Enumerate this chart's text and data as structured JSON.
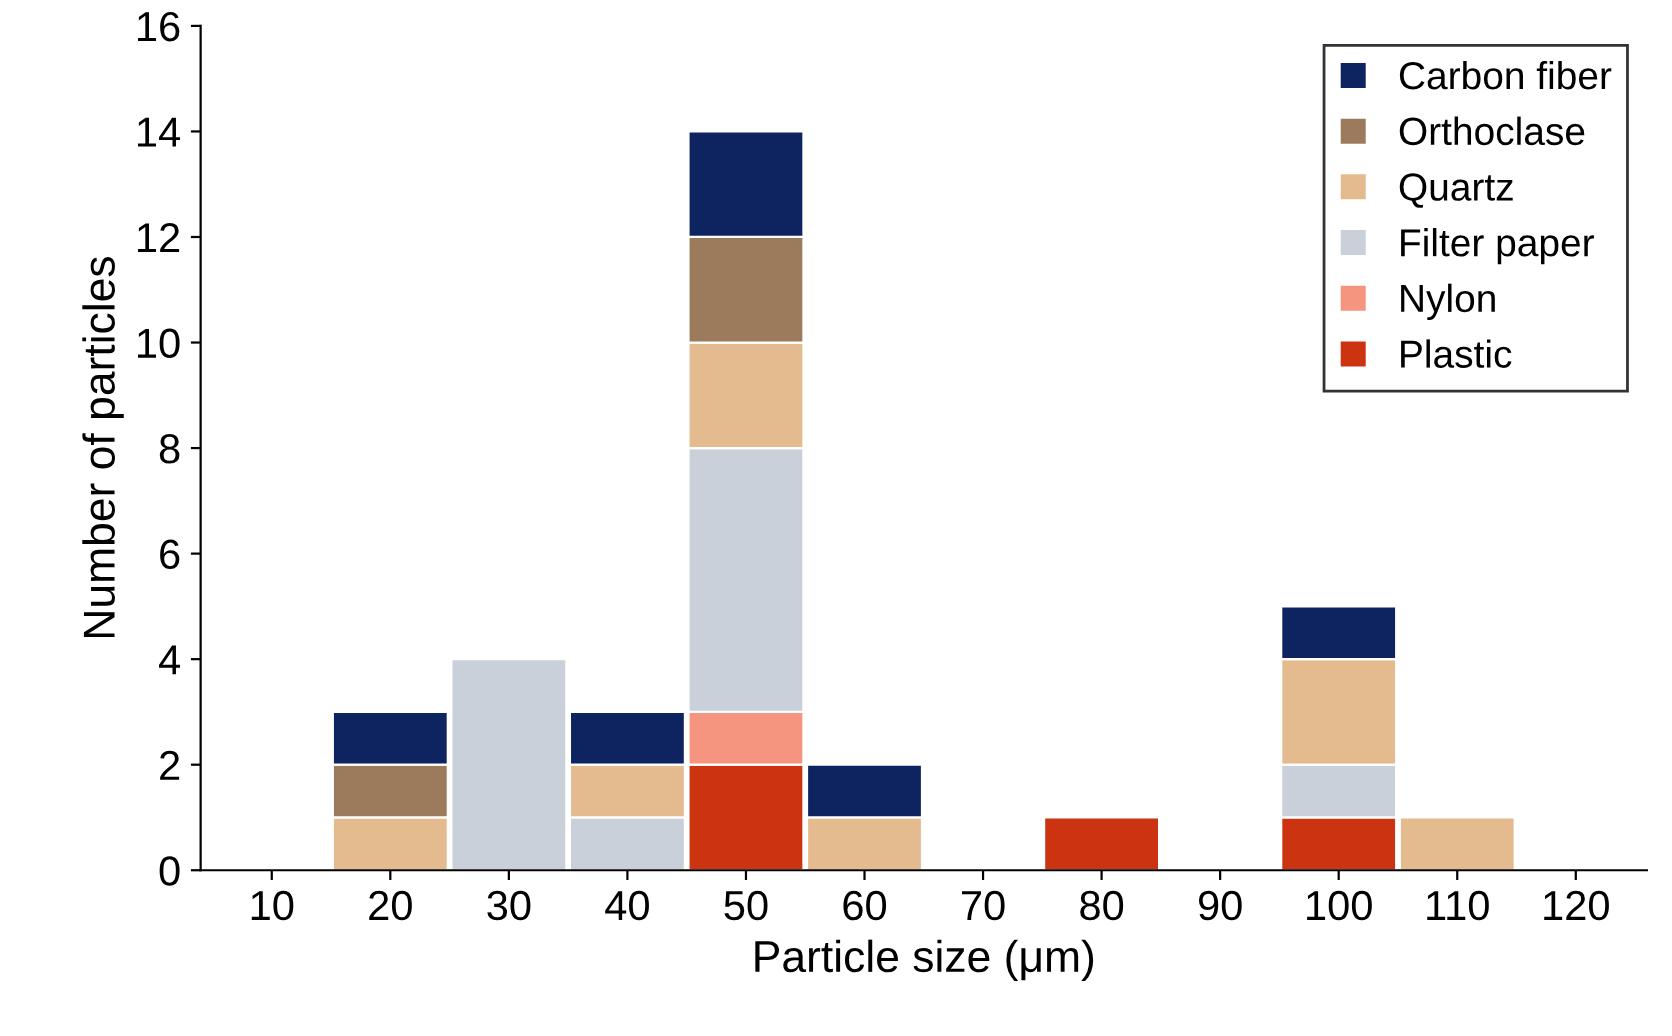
{
  "chart_data": {
    "type": "bar",
    "stacked": true,
    "xlabel": "Particle size (μm)",
    "ylabel": "Number of particles",
    "categories": [
      "10",
      "20",
      "30",
      "40",
      "50",
      "60",
      "70",
      "80",
      "90",
      "100",
      "110",
      "120"
    ],
    "series": [
      {
        "name": "Plastic",
        "color": "#cc3310",
        "values": [
          0,
          0,
          0,
          0,
          2,
          0,
          0,
          1,
          0,
          1,
          0,
          0
        ]
      },
      {
        "name": "Nylon",
        "color": "#f59580",
        "values": [
          0,
          0,
          0,
          0,
          1,
          0,
          0,
          0,
          0,
          0,
          0,
          0
        ]
      },
      {
        "name": "Filter paper",
        "color": "#c9d0da",
        "values": [
          0,
          0,
          4,
          1,
          5,
          0,
          0,
          0,
          0,
          1,
          0,
          0
        ]
      },
      {
        "name": "Quartz",
        "color": "#e3bb8e",
        "values": [
          0,
          1,
          0,
          1,
          2,
          1,
          0,
          0,
          0,
          2,
          1,
          0
        ]
      },
      {
        "name": "Orthoclase",
        "color": "#9c7b5c",
        "values": [
          0,
          1,
          0,
          0,
          2,
          0,
          0,
          0,
          0,
          0,
          0,
          0
        ]
      },
      {
        "name": "Carbon fiber",
        "color": "#0d2461",
        "values": [
          0,
          1,
          0,
          1,
          2,
          1,
          0,
          0,
          0,
          1,
          0,
          0
        ]
      }
    ],
    "ylim": [
      0,
      16
    ],
    "yticks": [
      0,
      2,
      4,
      6,
      8,
      10,
      12,
      14,
      16
    ],
    "grid": false,
    "legend": "top right"
  }
}
